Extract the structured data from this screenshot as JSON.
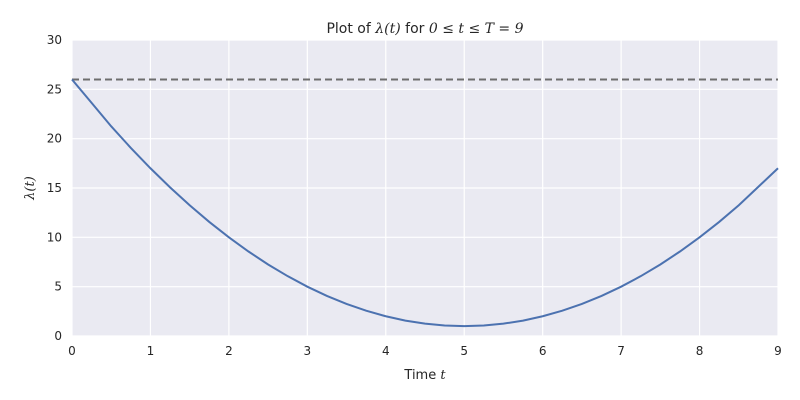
{
  "chart_data": {
    "type": "line",
    "title": {
      "prefix": "Plot of ",
      "math": "λ(t)",
      "middle": " for ",
      "math2": "0 ≤ t ≤ T = 9"
    },
    "xlabel": {
      "text": "Time ",
      "math": "t"
    },
    "ylabel": {
      "math": "λ(t)"
    },
    "xlim": [
      0,
      9
    ],
    "ylim": [
      0,
      30
    ],
    "xticks": [
      "0",
      "1",
      "2",
      "3",
      "4",
      "5",
      "6",
      "7",
      "8",
      "9"
    ],
    "yticks": [
      "0",
      "5",
      "10",
      "15",
      "20",
      "25",
      "30"
    ],
    "grid": true,
    "series": [
      {
        "x": [
          0,
          0.5,
          1,
          1.5,
          2,
          2.5,
          3,
          3.5,
          4,
          4.5,
          5,
          5.5,
          6,
          6.5,
          7,
          7.5,
          8,
          8.5,
          9
        ],
        "values": [
          26,
          21.25,
          17,
          13.25,
          10,
          7.25,
          5,
          3.25,
          2,
          1.25,
          1,
          1.25,
          2,
          3.25,
          5,
          7.25,
          10,
          13.25,
          17
        ],
        "color": "#4c72b0",
        "style": "solid"
      }
    ],
    "hlines": [
      {
        "y": 26,
        "color": "#6d6d6d",
        "style": "dashed"
      }
    ],
    "colors": {
      "background": "#eaeaf2",
      "grid": "#ffffff",
      "text": "#262626"
    }
  }
}
